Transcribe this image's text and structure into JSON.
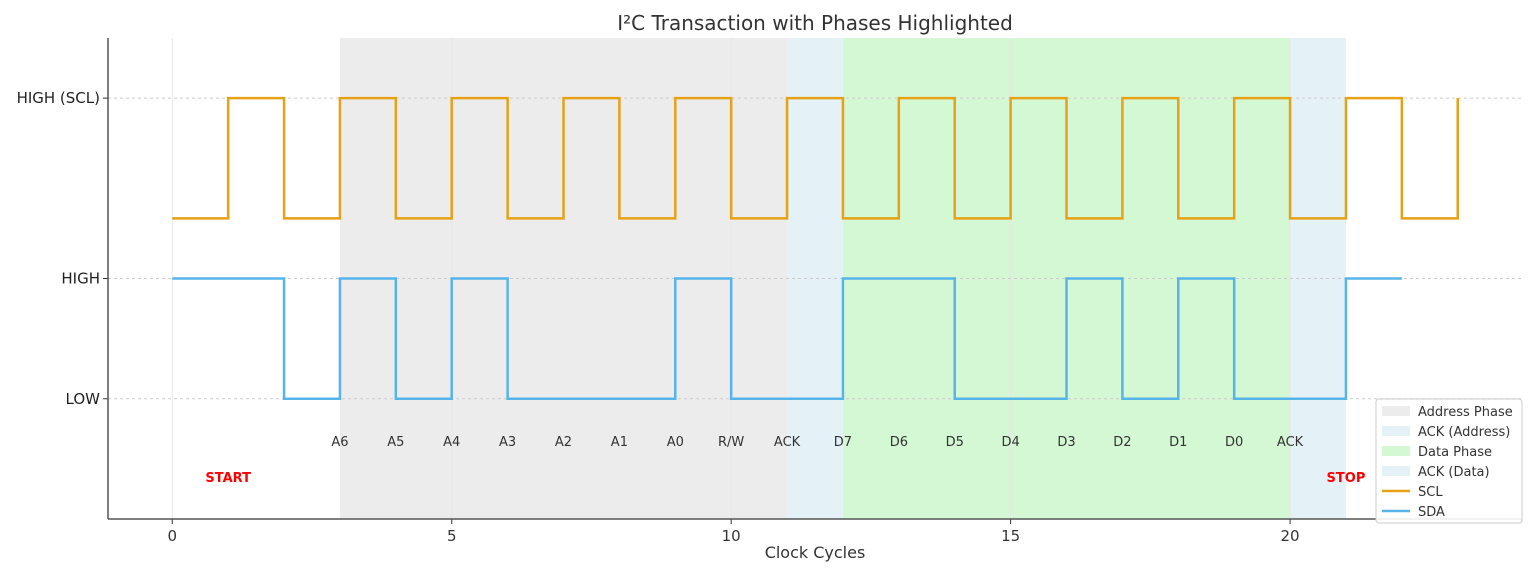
{
  "chart_data": {
    "type": "line",
    "title": "I²C Transaction with Phases Highlighted",
    "xlabel": "Clock Cycles",
    "ylabel": "",
    "xlim": [
      -1.15,
      24.15
    ],
    "ylim": [
      -1,
      3
    ],
    "xticks": [
      0,
      5,
      10,
      15,
      20
    ],
    "yticks": [
      {
        "value": 0,
        "label": "LOW"
      },
      {
        "value": 1,
        "label": "HIGH"
      },
      {
        "value": 2.5,
        "label": "HIGH (SCL)"
      }
    ],
    "grid": true,
    "legend_position": "bottom-right",
    "step": "post",
    "series": [
      {
        "name": "SCL",
        "color": "#E6A116",
        "x": [
          0,
          1,
          2,
          3,
          4,
          5,
          6,
          7,
          8,
          9,
          10,
          11,
          12,
          13,
          14,
          15,
          16,
          17,
          18,
          19,
          20,
          21,
          22,
          23
        ],
        "y": [
          1.5,
          2.5,
          1.5,
          2.5,
          1.5,
          2.5,
          1.5,
          2.5,
          1.5,
          2.5,
          1.5,
          2.5,
          1.5,
          2.5,
          1.5,
          2.5,
          1.5,
          2.5,
          1.5,
          2.5,
          1.5,
          2.5,
          1.5,
          2.5
        ]
      },
      {
        "name": "SDA",
        "color": "#56B4E9",
        "x": [
          0,
          1,
          2,
          3,
          4,
          5,
          6,
          7,
          8,
          9,
          10,
          11,
          12,
          13,
          14,
          15,
          16,
          17,
          18,
          19,
          20,
          21,
          22
        ],
        "y": [
          1,
          1,
          0,
          1,
          0,
          1,
          0,
          0,
          0,
          1,
          0,
          0,
          1,
          1,
          0,
          0,
          1,
          0,
          1,
          0,
          0,
          1,
          1
        ]
      }
    ],
    "regions": [
      {
        "name": "Address Phase",
        "start": 3,
        "end": 11,
        "color": "#ECECEC"
      },
      {
        "name": "ACK (Address)",
        "start": 11,
        "end": 12,
        "color": "#E4F2F8"
      },
      {
        "name": "Data Phase",
        "start": 12,
        "end": 20,
        "color": "#D4F8D4"
      },
      {
        "name": "ACK (Data)",
        "start": 20,
        "end": 21,
        "color": "#E4F2F8"
      }
    ],
    "bit_labels": {
      "y": -0.35,
      "items": [
        {
          "x": 3,
          "text": "A6"
        },
        {
          "x": 4,
          "text": "A5"
        },
        {
          "x": 5,
          "text": "A4"
        },
        {
          "x": 6,
          "text": "A3"
        },
        {
          "x": 7,
          "text": "A2"
        },
        {
          "x": 8,
          "text": "A1"
        },
        {
          "x": 9,
          "text": "A0"
        },
        {
          "x": 10,
          "text": "R/W"
        },
        {
          "x": 11,
          "text": "ACK"
        },
        {
          "x": 12,
          "text": "D7"
        },
        {
          "x": 13,
          "text": "D6"
        },
        {
          "x": 14,
          "text": "D5"
        },
        {
          "x": 15,
          "text": "D4"
        },
        {
          "x": 16,
          "text": "D3"
        },
        {
          "x": 17,
          "text": "D2"
        },
        {
          "x": 18,
          "text": "D1"
        },
        {
          "x": 19,
          "text": "D0"
        },
        {
          "x": 20,
          "text": "ACK"
        }
      ]
    },
    "annotations": [
      {
        "x": 1,
        "y": -0.65,
        "text": "START",
        "color": "#FF0000"
      },
      {
        "x": 21,
        "y": -0.65,
        "text": "STOP",
        "color": "#FF0000"
      }
    ]
  }
}
